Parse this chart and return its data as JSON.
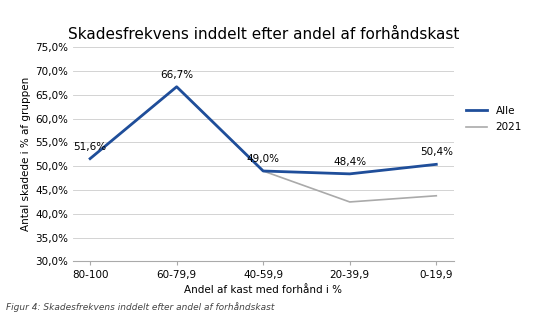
{
  "title": "Skadesfrekvens inddelt efter andel af forhåndskast",
  "xlabel": "Andel af kast med forhånd i %",
  "ylabel": "Antal skadede i % af gruppen",
  "caption": "Figur 4: Skadesfrekvens inddelt efter andel af forhåndskast",
  "categories": [
    "80-100",
    "60-79,9",
    "40-59,9",
    "20-39,9",
    "0-19,9"
  ],
  "alle_values": [
    51.6,
    66.7,
    49.0,
    48.4,
    50.4
  ],
  "alle_labels": [
    "51,6%",
    "66,7%",
    "49,0%",
    "48,4%",
    "50,4%"
  ],
  "y2021_values": [
    51.6,
    66.7,
    49.0,
    42.5,
    43.8
  ],
  "alle_color": "#1F4E9A",
  "y2021_color": "#AAAAAA",
  "ylim_min": 30.0,
  "ylim_max": 75.0,
  "yticks": [
    30.0,
    35.0,
    40.0,
    45.0,
    50.0,
    55.0,
    60.0,
    65.0,
    70.0,
    75.0
  ],
  "background_color": "#FFFFFF",
  "legend_alle": "Alle",
  "legend_2021": "2021",
  "title_fontsize": 11,
  "label_fontsize": 7.5,
  "tick_fontsize": 7.5,
  "caption_fontsize": 6.5,
  "caption_color": "#444444"
}
